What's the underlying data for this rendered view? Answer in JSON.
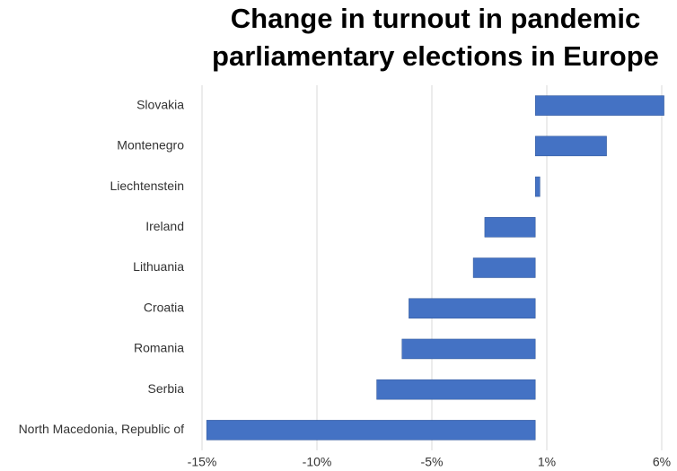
{
  "chart_data": {
    "type": "bar",
    "orientation": "horizontal",
    "title": "Change in turnout in pandemic parliamentary elections in Europe",
    "categories": [
      "Slovakia",
      "Montenegro",
      "Liechtenstein",
      "Ireland",
      "Lithuania",
      "Croatia",
      "Romania",
      "Serbia",
      "North Macedonia, Republic of"
    ],
    "values": [
      5.6,
      3.1,
      0.2,
      -2.2,
      -2.7,
      -5.5,
      -5.8,
      -6.9,
      -14.3
    ],
    "color": "#4472c4",
    "xlim": [
      -14.5,
      5.5
    ],
    "xticks": [
      {
        "value": -14.5,
        "label": "-15%"
      },
      {
        "value": -9.5,
        "label": "-10%"
      },
      {
        "value": -4.5,
        "label": "-5%"
      },
      {
        "value": 0.5,
        "label": "1%"
      },
      {
        "value": 5.5,
        "label": "6%"
      }
    ],
    "grid": true
  }
}
